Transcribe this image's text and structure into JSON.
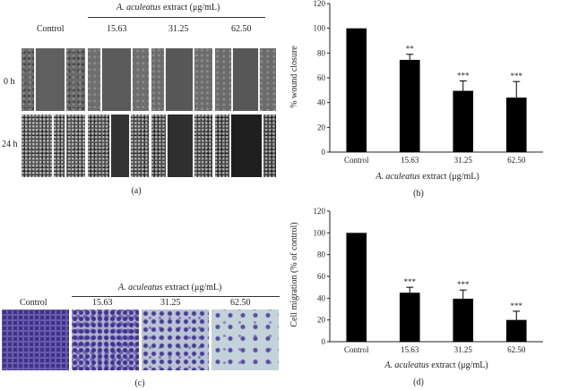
{
  "panel_a": {
    "caption": "(a)",
    "group_label_italic": "A. aculeatus",
    "group_label_rest": " extract (μg/mL)",
    "columns": [
      "Control",
      "15.63",
      "31.25",
      "62.50"
    ],
    "rows": [
      "0 h",
      "24 h"
    ]
  },
  "panel_c": {
    "caption": "(c)",
    "group_label_italic": "A. aculeatus",
    "group_label_rest": " extract (μg/mL)",
    "columns": [
      "Control",
      "15.63",
      "31.25",
      "62.50"
    ]
  },
  "chart_data": [
    {
      "type": "bar",
      "panel": "(b)",
      "categories": [
        "Control",
        "15.63",
        "31.25",
        "62.50"
      ],
      "values": [
        100,
        74.5,
        49.5,
        44
      ],
      "errors": [
        0,
        4.5,
        8,
        13
      ],
      "significance": [
        "",
        "**",
        "***",
        "***"
      ],
      "xlabel_italic": "A. aculeatus",
      "xlabel_rest": " extract (μg/mL)",
      "ylabel": "% wound closure",
      "ylim": [
        0,
        120
      ],
      "yticks": [
        0,
        20,
        40,
        60,
        80,
        100,
        120
      ],
      "bar_color": "#000000",
      "grid": false
    },
    {
      "type": "bar",
      "panel": "(d)",
      "categories": [
        "Control",
        "15.63",
        "31.25",
        "62.50"
      ],
      "values": [
        100,
        45,
        39.5,
        20
      ],
      "errors": [
        0,
        5,
        8,
        8
      ],
      "significance": [
        "",
        "***",
        "***",
        "***"
      ],
      "xlabel_italic": "A. aculeatus",
      "xlabel_rest": " extract (μg/mL)",
      "ylabel": "Cell migration (% of control)",
      "ylim": [
        0,
        120
      ],
      "yticks": [
        0,
        20,
        40,
        60,
        80,
        100,
        120
      ],
      "bar_color": "#000000",
      "grid": false
    }
  ]
}
